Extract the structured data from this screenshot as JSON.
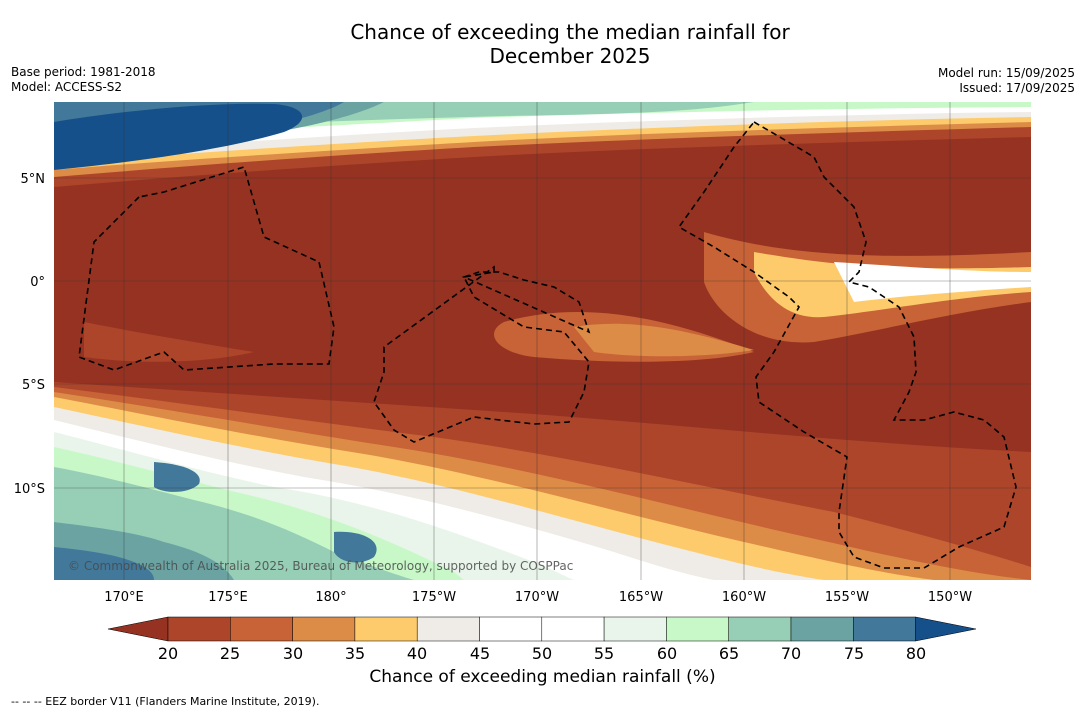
{
  "title_line1": "Chance of exceeding the median rainfall for",
  "title_line2": "December 2025",
  "base_period": "Base period: 1981-2018",
  "model": "Model: ACCESS-S2",
  "model_run": "Model run: 15/09/2025",
  "issued": "Issued: 17/09/2025",
  "lat_labels": [
    "5°N",
    "0°",
    "5°S",
    "10°S"
  ],
  "lon_labels": [
    "170°E",
    "175°E",
    "180°",
    "175°W",
    "170°W",
    "165°W",
    "160°W",
    "155°W",
    "150°W"
  ],
  "copyright": "© Commonwealth of Australia 2025, Bureau of Meteorology, supported by COSPPac",
  "colorbar": {
    "ticks": [
      "20",
      "25",
      "30",
      "35",
      "40",
      "45",
      "50",
      "55",
      "60",
      "65",
      "70",
      "75",
      "80"
    ],
    "title": "Chance of exceeding median rainfall (%)",
    "colors": [
      "#963221",
      "#ad452a",
      "#c76336",
      "#dc8c47",
      "#fdcb6c",
      "#efece7",
      "#ffffff",
      "#ffffff",
      "#e9f5ea",
      "#c8f8c8",
      "#97cfb6",
      "#6ba3a3",
      "#42789a",
      "#15508a"
    ]
  },
  "footnote": "--  --  -- EEZ border V11 (Flanders Marine Institute, 2019).",
  "legend_colors": {
    "p20_lt": "#963221",
    "p20_25": "#ad452a",
    "p25_30": "#c76336",
    "p30_35": "#dc8c47",
    "p35_40": "#fdcb6c",
    "p40_45": "#efece7",
    "p45_55": "#ffffff",
    "p55_60": "#e9f5ea",
    "p60_65": "#c8f8c8",
    "p65_70": "#97cfb6",
    "p70_75": "#6ba3a3",
    "p75_80": "#42789a",
    "p80_gt": "#15508a"
  }
}
